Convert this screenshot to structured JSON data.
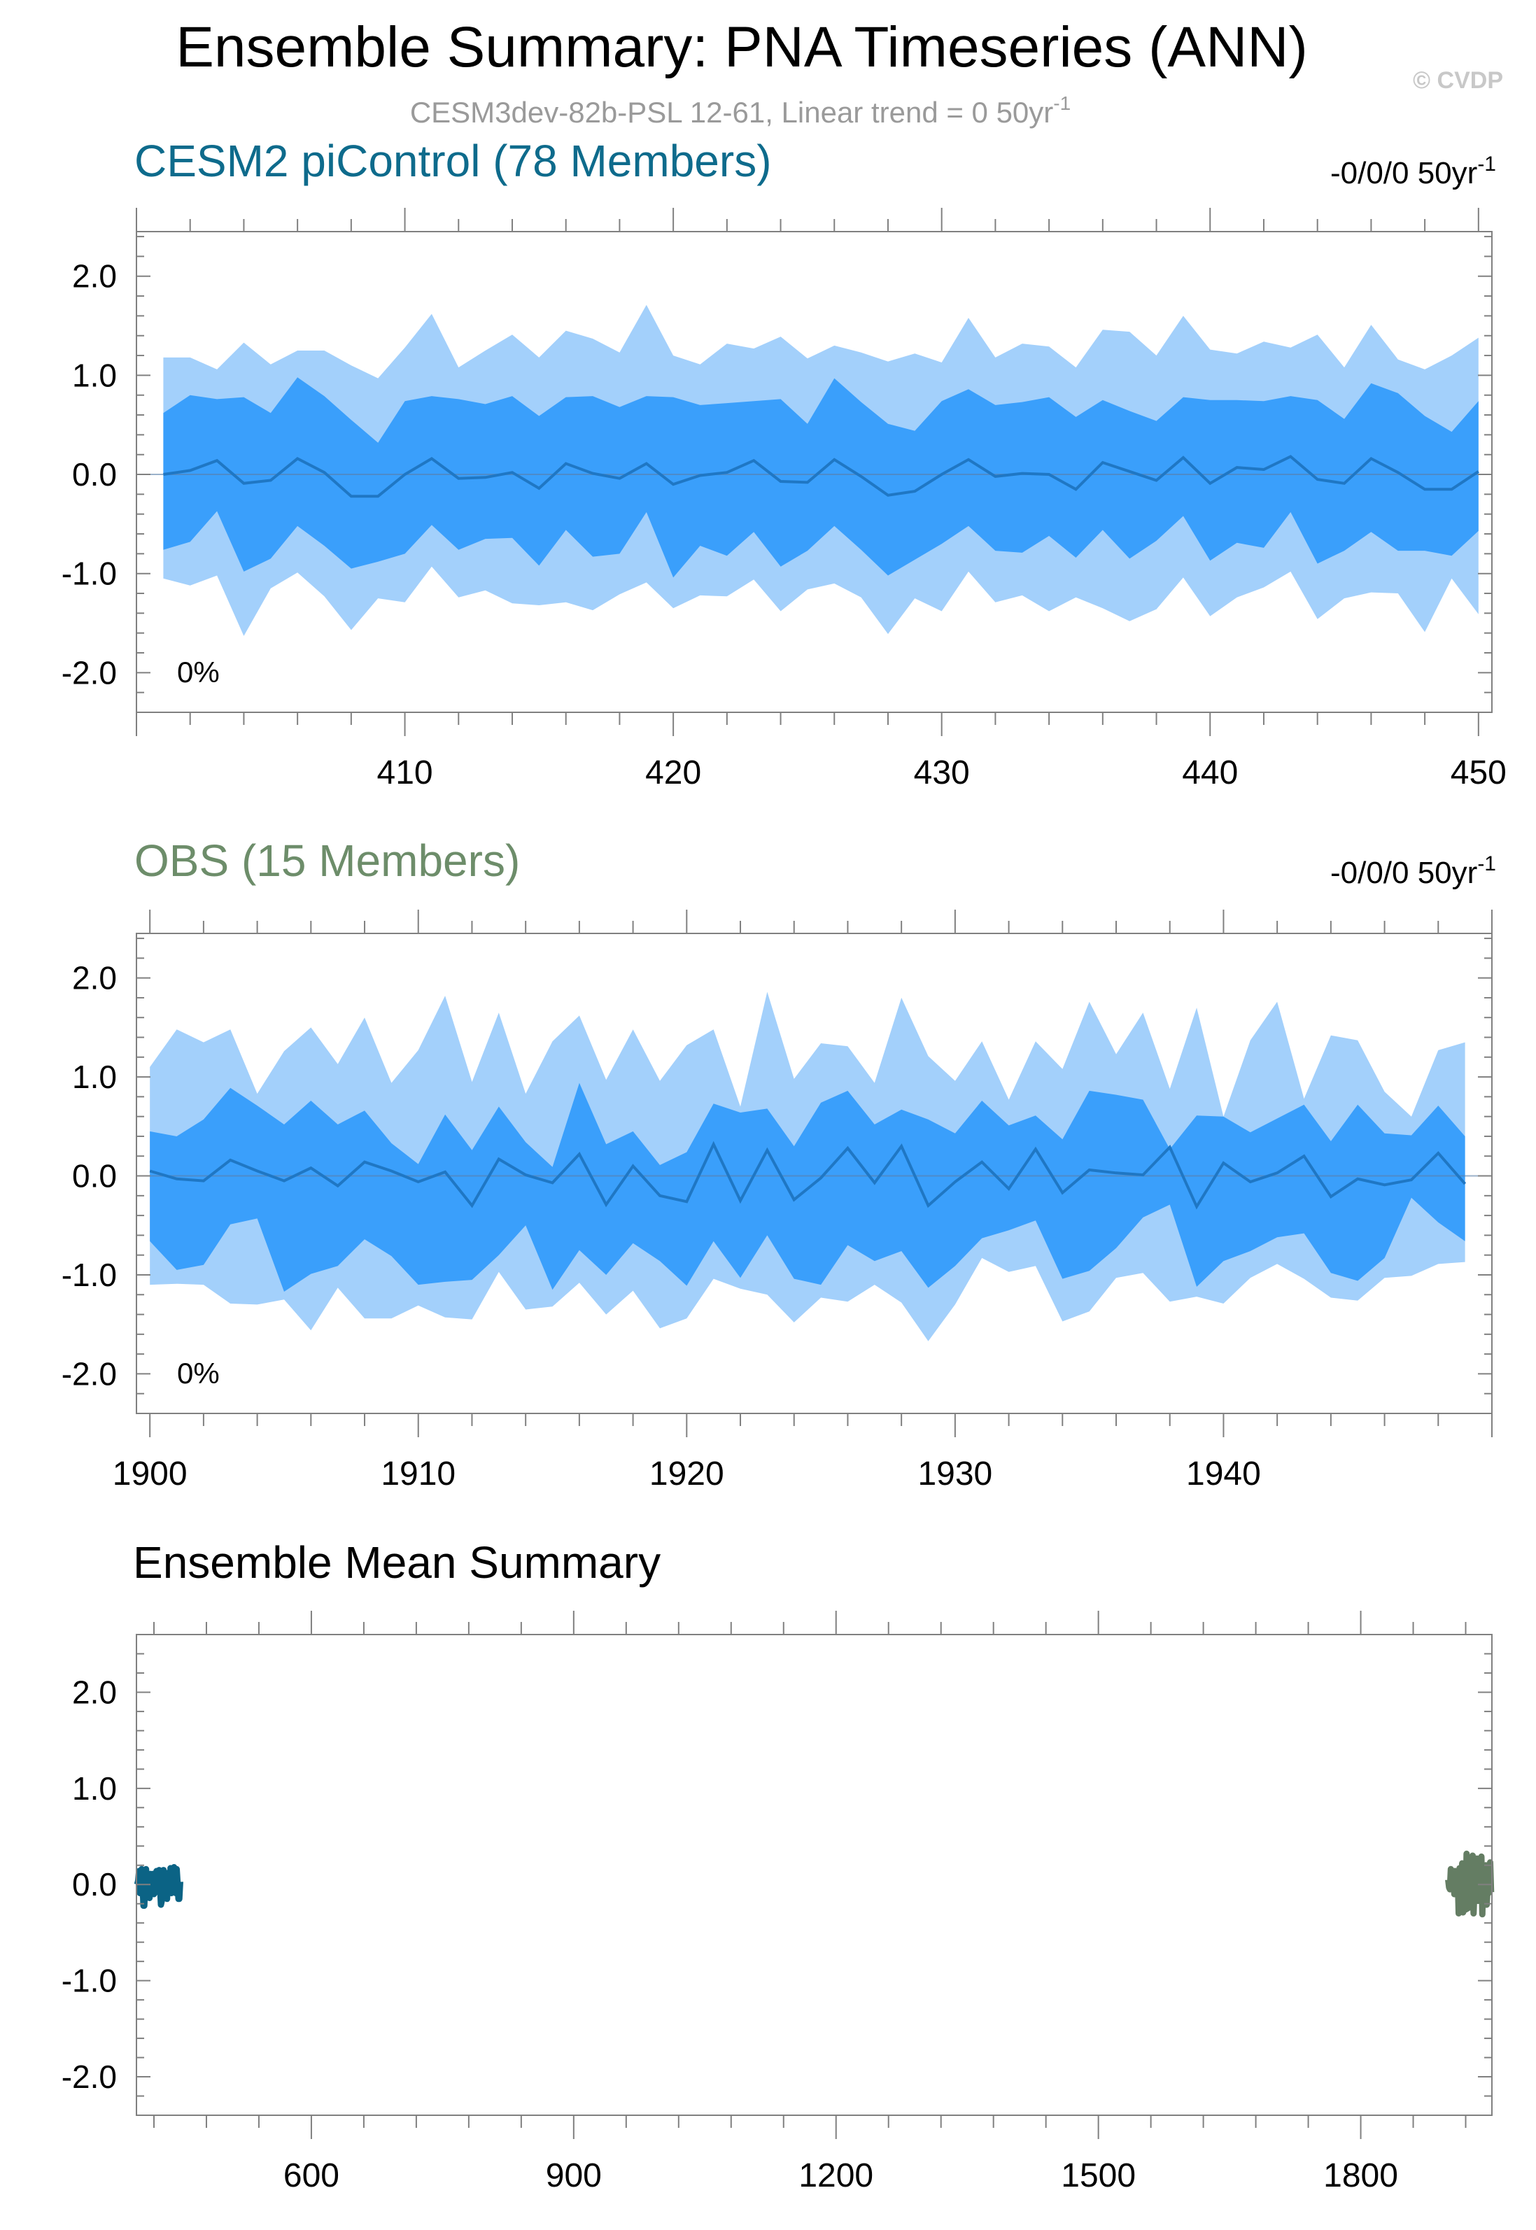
{
  "title": "Ensemble Summary: PNA Timeseries (ANN)",
  "watermark": "© CVDP",
  "subtitle": {
    "main": "CESM3dev-82b-PSL 12-61, Linear trend = 0 50yr",
    "sup": "-1"
  },
  "colors": {
    "outer_band": "#a3d0fb",
    "inner_band": "#3a9ffb",
    "mean_line": "#1f77c4",
    "cesm2_title": "#0e6b8c",
    "obs_title": "#6d8d6a",
    "cesm2_series": "#0b6385",
    "obs_series": "#647d63",
    "subtitle": "#9a9a9a",
    "watermark": "#c8c8c8",
    "frame": "#808080"
  },
  "chart_data": [
    {
      "type": "area",
      "title": "CESM2 piControl (78 Members)",
      "trend_label": "-0/0/0 50yr",
      "trend_sup": "-1",
      "percent_label": "0%",
      "xlim": [
        400,
        450.5
      ],
      "ylim": [
        -2.4,
        2.45
      ],
      "xticks": [
        410,
        420,
        430,
        440,
        450
      ],
      "xtick_labels": [
        "410",
        "420",
        "430",
        "440",
        "450"
      ],
      "yticks": [
        2.0,
        1.0,
        0.0,
        -1.0,
        -2.0
      ],
      "ytick_labels": [
        "2.0",
        "1.0",
        "0.0",
        "-1.0",
        "-2.0"
      ],
      "x": [
        401,
        402,
        403,
        404,
        405,
        406,
        407,
        408,
        409,
        410,
        411,
        412,
        413,
        414,
        415,
        416,
        417,
        418,
        419,
        420,
        421,
        422,
        423,
        424,
        425,
        426,
        427,
        428,
        429,
        430,
        431,
        432,
        433,
        434,
        435,
        436,
        437,
        438,
        439,
        440,
        441,
        442,
        443,
        444,
        445,
        446,
        447,
        448,
        449,
        450
      ],
      "series": [
        {
          "name": "max",
          "values": [
            1.18,
            1.18,
            1.06,
            1.33,
            1.11,
            1.25,
            1.25,
            1.1,
            0.97,
            1.28,
            1.62,
            1.08,
            1.25,
            1.41,
            1.18,
            1.45,
            1.37,
            1.23,
            1.71,
            1.2,
            1.11,
            1.32,
            1.27,
            1.39,
            1.17,
            1.3,
            1.23,
            1.14,
            1.22,
            1.13,
            1.58,
            1.18,
            1.32,
            1.29,
            1.08,
            1.46,
            1.44,
            1.2,
            1.6,
            1.26,
            1.22,
            1.34,
            1.28,
            1.41,
            1.08,
            1.51,
            1.16,
            1.06,
            1.2,
            1.38
          ]
        },
        {
          "name": "p75",
          "values": [
            0.62,
            0.8,
            0.76,
            0.78,
            0.62,
            0.98,
            0.79,
            0.55,
            0.32,
            0.74,
            0.79,
            0.76,
            0.71,
            0.79,
            0.59,
            0.78,
            0.79,
            0.68,
            0.79,
            0.78,
            0.7,
            0.72,
            0.74,
            0.76,
            0.51,
            0.97,
            0.73,
            0.51,
            0.44,
            0.74,
            0.86,
            0.7,
            0.73,
            0.78,
            0.58,
            0.75,
            0.64,
            0.54,
            0.78,
            0.75,
            0.75,
            0.74,
            0.79,
            0.75,
            0.56,
            0.92,
            0.82,
            0.59,
            0.43,
            0.74
          ]
        },
        {
          "name": "mean",
          "values": [
            0.0,
            0.04,
            0.14,
            -0.09,
            -0.06,
            0.16,
            0.02,
            -0.22,
            -0.22,
            0.0,
            0.16,
            -0.04,
            -0.03,
            0.02,
            -0.14,
            0.11,
            0.01,
            -0.04,
            0.11,
            -0.1,
            -0.01,
            0.02,
            0.14,
            -0.07,
            -0.08,
            0.15,
            -0.02,
            -0.21,
            -0.17,
            0.0,
            0.15,
            -0.02,
            0.01,
            0.0,
            -0.15,
            0.12,
            0.03,
            -0.06,
            0.17,
            -0.09,
            0.07,
            0.05,
            0.18,
            -0.05,
            -0.09,
            0.16,
            0.02,
            -0.15,
            -0.15,
            0.03
          ]
        },
        {
          "name": "p25",
          "values": [
            -0.76,
            -0.68,
            -0.37,
            -0.98,
            -0.85,
            -0.52,
            -0.72,
            -0.95,
            -0.88,
            -0.8,
            -0.51,
            -0.76,
            -0.65,
            -0.64,
            -0.92,
            -0.56,
            -0.83,
            -0.8,
            -0.38,
            -1.04,
            -0.72,
            -0.82,
            -0.58,
            -0.93,
            -0.77,
            -0.52,
            -0.76,
            -1.02,
            -0.86,
            -0.7,
            -0.52,
            -0.77,
            -0.79,
            -0.62,
            -0.84,
            -0.56,
            -0.85,
            -0.67,
            -0.42,
            -0.87,
            -0.69,
            -0.74,
            -0.38,
            -0.9,
            -0.77,
            -0.58,
            -0.77,
            -0.77,
            -0.82,
            -0.57
          ]
        },
        {
          "name": "min",
          "values": [
            -1.05,
            -1.12,
            -1.02,
            -1.63,
            -1.15,
            -0.99,
            -1.23,
            -1.57,
            -1.25,
            -1.29,
            -0.93,
            -1.24,
            -1.17,
            -1.3,
            -1.32,
            -1.29,
            -1.37,
            -1.21,
            -1.09,
            -1.35,
            -1.22,
            -1.23,
            -1.06,
            -1.38,
            -1.16,
            -1.1,
            -1.24,
            -1.61,
            -1.25,
            -1.38,
            -0.98,
            -1.29,
            -1.22,
            -1.38,
            -1.24,
            -1.35,
            -1.48,
            -1.36,
            -1.04,
            -1.43,
            -1.24,
            -1.14,
            -0.98,
            -1.46,
            -1.25,
            -1.19,
            -1.2,
            -1.59,
            -1.05,
            -1.41
          ]
        }
      ]
    },
    {
      "type": "area",
      "title": "OBS (15 Members)",
      "trend_label": "-0/0/0 50yr",
      "trend_sup": "-1",
      "percent_label": "0%",
      "xlim": [
        1899.5,
        1950
      ],
      "ylim": [
        -2.4,
        2.45
      ],
      "xticks": [
        1900,
        1910,
        1920,
        1930,
        1940
      ],
      "xtick_labels": [
        "1900",
        "1910",
        "1920",
        "1930",
        "1940"
      ],
      "yticks": [
        2.0,
        1.0,
        0.0,
        -1.0,
        -2.0
      ],
      "ytick_labels": [
        "2.0",
        "1.0",
        "0.0",
        "-1.0",
        "-2.0"
      ],
      "x": [
        1900,
        1901,
        1902,
        1903,
        1904,
        1905,
        1906,
        1907,
        1908,
        1909,
        1910,
        1911,
        1912,
        1913,
        1914,
        1915,
        1916,
        1917,
        1918,
        1919,
        1920,
        1921,
        1922,
        1923,
        1924,
        1925,
        1926,
        1927,
        1928,
        1929,
        1930,
        1931,
        1932,
        1933,
        1934,
        1935,
        1936,
        1937,
        1938,
        1939,
        1940,
        1941,
        1942,
        1943,
        1944,
        1945,
        1946,
        1947,
        1948,
        1949
      ],
      "series": [
        {
          "name": "max",
          "values": [
            1.1,
            1.48,
            1.35,
            1.48,
            0.83,
            1.26,
            1.5,
            1.13,
            1.6,
            0.94,
            1.27,
            1.82,
            0.95,
            1.65,
            0.83,
            1.36,
            1.62,
            0.97,
            1.48,
            0.96,
            1.32,
            1.48,
            0.7,
            1.86,
            0.98,
            1.34,
            1.31,
            0.94,
            1.8,
            1.21,
            0.96,
            1.36,
            0.77,
            1.36,
            1.08,
            1.76,
            1.23,
            1.65,
            0.88,
            1.7,
            0.6,
            1.37,
            1.76,
            0.78,
            1.42,
            1.37,
            0.85,
            0.6,
            1.27,
            1.35
          ]
        },
        {
          "name": "p75",
          "values": [
            0.45,
            0.4,
            0.57,
            0.89,
            0.71,
            0.52,
            0.76,
            0.52,
            0.66,
            0.33,
            0.12,
            0.62,
            0.26,
            0.7,
            0.34,
            0.09,
            0.94,
            0.32,
            0.45,
            0.11,
            0.24,
            0.73,
            0.64,
            0.68,
            0.3,
            0.74,
            0.86,
            0.52,
            0.67,
            0.57,
            0.43,
            0.76,
            0.51,
            0.61,
            0.37,
            0.86,
            0.82,
            0.77,
            0.27,
            0.61,
            0.6,
            0.44,
            0.58,
            0.72,
            0.35,
            0.72,
            0.43,
            0.41,
            0.71,
            0.4
          ]
        },
        {
          "name": "mean",
          "values": [
            0.05,
            -0.03,
            -0.05,
            0.16,
            0.05,
            -0.05,
            0.08,
            -0.1,
            0.14,
            0.05,
            -0.06,
            0.04,
            -0.3,
            0.17,
            0.01,
            -0.07,
            0.22,
            -0.29,
            0.1,
            -0.2,
            -0.26,
            0.32,
            -0.25,
            0.26,
            -0.24,
            -0.02,
            0.28,
            -0.07,
            0.3,
            -0.3,
            -0.06,
            0.14,
            -0.13,
            0.27,
            -0.17,
            0.06,
            0.03,
            0.01,
            0.29,
            -0.31,
            0.13,
            -0.06,
            0.03,
            0.2,
            -0.21,
            -0.03,
            -0.09,
            -0.04,
            0.23,
            -0.08
          ]
        },
        {
          "name": "p25",
          "values": [
            -0.66,
            -0.95,
            -0.9,
            -0.49,
            -0.43,
            -1.17,
            -0.99,
            -0.91,
            -0.64,
            -0.81,
            -1.1,
            -1.07,
            -1.05,
            -0.8,
            -0.5,
            -1.15,
            -0.75,
            -1.0,
            -0.68,
            -0.86,
            -1.11,
            -0.66,
            -1.03,
            -0.6,
            -1.04,
            -1.1,
            -0.7,
            -0.86,
            -0.76,
            -1.13,
            -0.91,
            -0.63,
            -0.55,
            -0.45,
            -1.04,
            -0.96,
            -0.73,
            -0.42,
            -0.29,
            -1.12,
            -0.86,
            -0.76,
            -0.62,
            -0.58,
            -0.98,
            -1.06,
            -0.83,
            -0.22,
            -0.47,
            -0.66
          ]
        },
        {
          "name": "min",
          "values": [
            -1.1,
            -1.09,
            -1.1,
            -1.29,
            -1.3,
            -1.25,
            -1.56,
            -1.13,
            -1.44,
            -1.44,
            -1.31,
            -1.43,
            -1.45,
            -0.97,
            -1.35,
            -1.32,
            -1.08,
            -1.4,
            -1.16,
            -1.54,
            -1.44,
            -1.04,
            -1.14,
            -1.2,
            -1.48,
            -1.23,
            -1.27,
            -1.1,
            -1.28,
            -1.67,
            -1.3,
            -0.83,
            -0.97,
            -0.91,
            -1.47,
            -1.37,
            -1.03,
            -0.98,
            -1.27,
            -1.22,
            -1.29,
            -1.03,
            -0.89,
            -1.04,
            -1.23,
            -1.26,
            -1.03,
            -1.01,
            -0.89,
            -0.87
          ]
        }
      ]
    },
    {
      "type": "line",
      "title": "Ensemble Mean Summary",
      "xlim": [
        400,
        1950
      ],
      "ylim": [
        -2.4,
        2.6
      ],
      "xticks": [
        600,
        900,
        1200,
        1500,
        1800
      ],
      "xtick_labels": [
        "600",
        "900",
        "1200",
        "1500",
        "1800"
      ],
      "yticks": [
        2.0,
        1.0,
        0.0,
        -1.0,
        -2.0
      ],
      "ytick_labels": [
        "2.0",
        "1.0",
        "0.0",
        "-1.0",
        "-2.0"
      ],
      "series": [
        {
          "name": "CESM2 piControl",
          "x": [
            401,
            402,
            403,
            404,
            405,
            406,
            407,
            408,
            409,
            410,
            411,
            412,
            413,
            414,
            415,
            416,
            417,
            418,
            419,
            420,
            421,
            422,
            423,
            424,
            425,
            426,
            427,
            428,
            429,
            430,
            431,
            432,
            433,
            434,
            435,
            436,
            437,
            438,
            439,
            440,
            441,
            442,
            443,
            444,
            445,
            446,
            447,
            448,
            449,
            450
          ],
          "values": [
            0.0,
            0.04,
            0.14,
            -0.09,
            -0.06,
            0.16,
            0.02,
            -0.22,
            -0.22,
            0.0,
            0.16,
            -0.04,
            -0.03,
            0.02,
            -0.14,
            0.11,
            0.01,
            -0.04,
            0.11,
            -0.1,
            -0.01,
            0.02,
            0.14,
            -0.07,
            -0.08,
            0.15,
            -0.02,
            -0.21,
            -0.17,
            0.0,
            0.15,
            -0.02,
            0.01,
            0.0,
            -0.15,
            0.12,
            0.03,
            -0.06,
            0.17,
            -0.09,
            0.07,
            0.05,
            0.18,
            -0.05,
            -0.09,
            0.16,
            0.02,
            -0.15,
            -0.15,
            0.03
          ]
        },
        {
          "name": "OBS",
          "x": [
            1900,
            1901,
            1902,
            1903,
            1904,
            1905,
            1906,
            1907,
            1908,
            1909,
            1910,
            1911,
            1912,
            1913,
            1914,
            1915,
            1916,
            1917,
            1918,
            1919,
            1920,
            1921,
            1922,
            1923,
            1924,
            1925,
            1926,
            1927,
            1928,
            1929,
            1930,
            1931,
            1932,
            1933,
            1934,
            1935,
            1936,
            1937,
            1938,
            1939,
            1940,
            1941,
            1942,
            1943,
            1944,
            1945,
            1946,
            1947,
            1948,
            1949
          ],
          "values": [
            0.05,
            -0.03,
            -0.05,
            0.16,
            0.05,
            -0.05,
            0.08,
            -0.1,
            0.14,
            0.05,
            -0.06,
            0.04,
            -0.3,
            0.17,
            0.01,
            -0.07,
            0.22,
            -0.29,
            0.1,
            -0.2,
            -0.26,
            0.32,
            -0.25,
            0.26,
            -0.24,
            -0.02,
            0.28,
            -0.07,
            0.3,
            -0.3,
            -0.06,
            0.14,
            -0.13,
            0.27,
            -0.17,
            0.06,
            0.03,
            0.01,
            0.29,
            -0.31,
            0.13,
            -0.06,
            0.03,
            0.2,
            -0.21,
            -0.03,
            -0.09,
            -0.04,
            0.23,
            -0.08
          ]
        }
      ]
    }
  ]
}
